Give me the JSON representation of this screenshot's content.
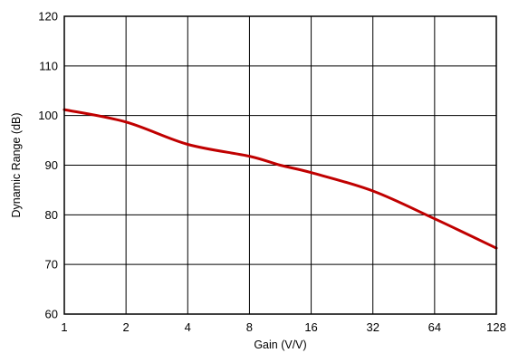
{
  "chart_data": {
    "type": "line",
    "title": "",
    "xlabel": "Gain (V/V)",
    "ylabel": "Dynamic Range (dB)",
    "x_scale": "log2",
    "xlim": [
      1,
      128
    ],
    "ylim": [
      60,
      120
    ],
    "x_ticks": [
      1,
      2,
      4,
      8,
      16,
      32,
      64,
      128
    ],
    "x_tick_labels": [
      "1",
      "2",
      "4",
      "8",
      "16",
      "32",
      "64",
      "128"
    ],
    "y_ticks": [
      60,
      70,
      80,
      90,
      100,
      110,
      120
    ],
    "y_tick_labels": [
      "60",
      "70",
      "80",
      "90",
      "100",
      "110",
      "120"
    ],
    "grid": true,
    "line_color": "#c00000",
    "series": [
      {
        "x": [
          1,
          2,
          4,
          8,
          11.3,
          16,
          32,
          64,
          128
        ],
        "y": [
          101.2,
          98.7,
          94.2,
          91.8,
          90.0,
          88.5,
          84.8,
          79.2,
          73.3
        ]
      }
    ]
  }
}
